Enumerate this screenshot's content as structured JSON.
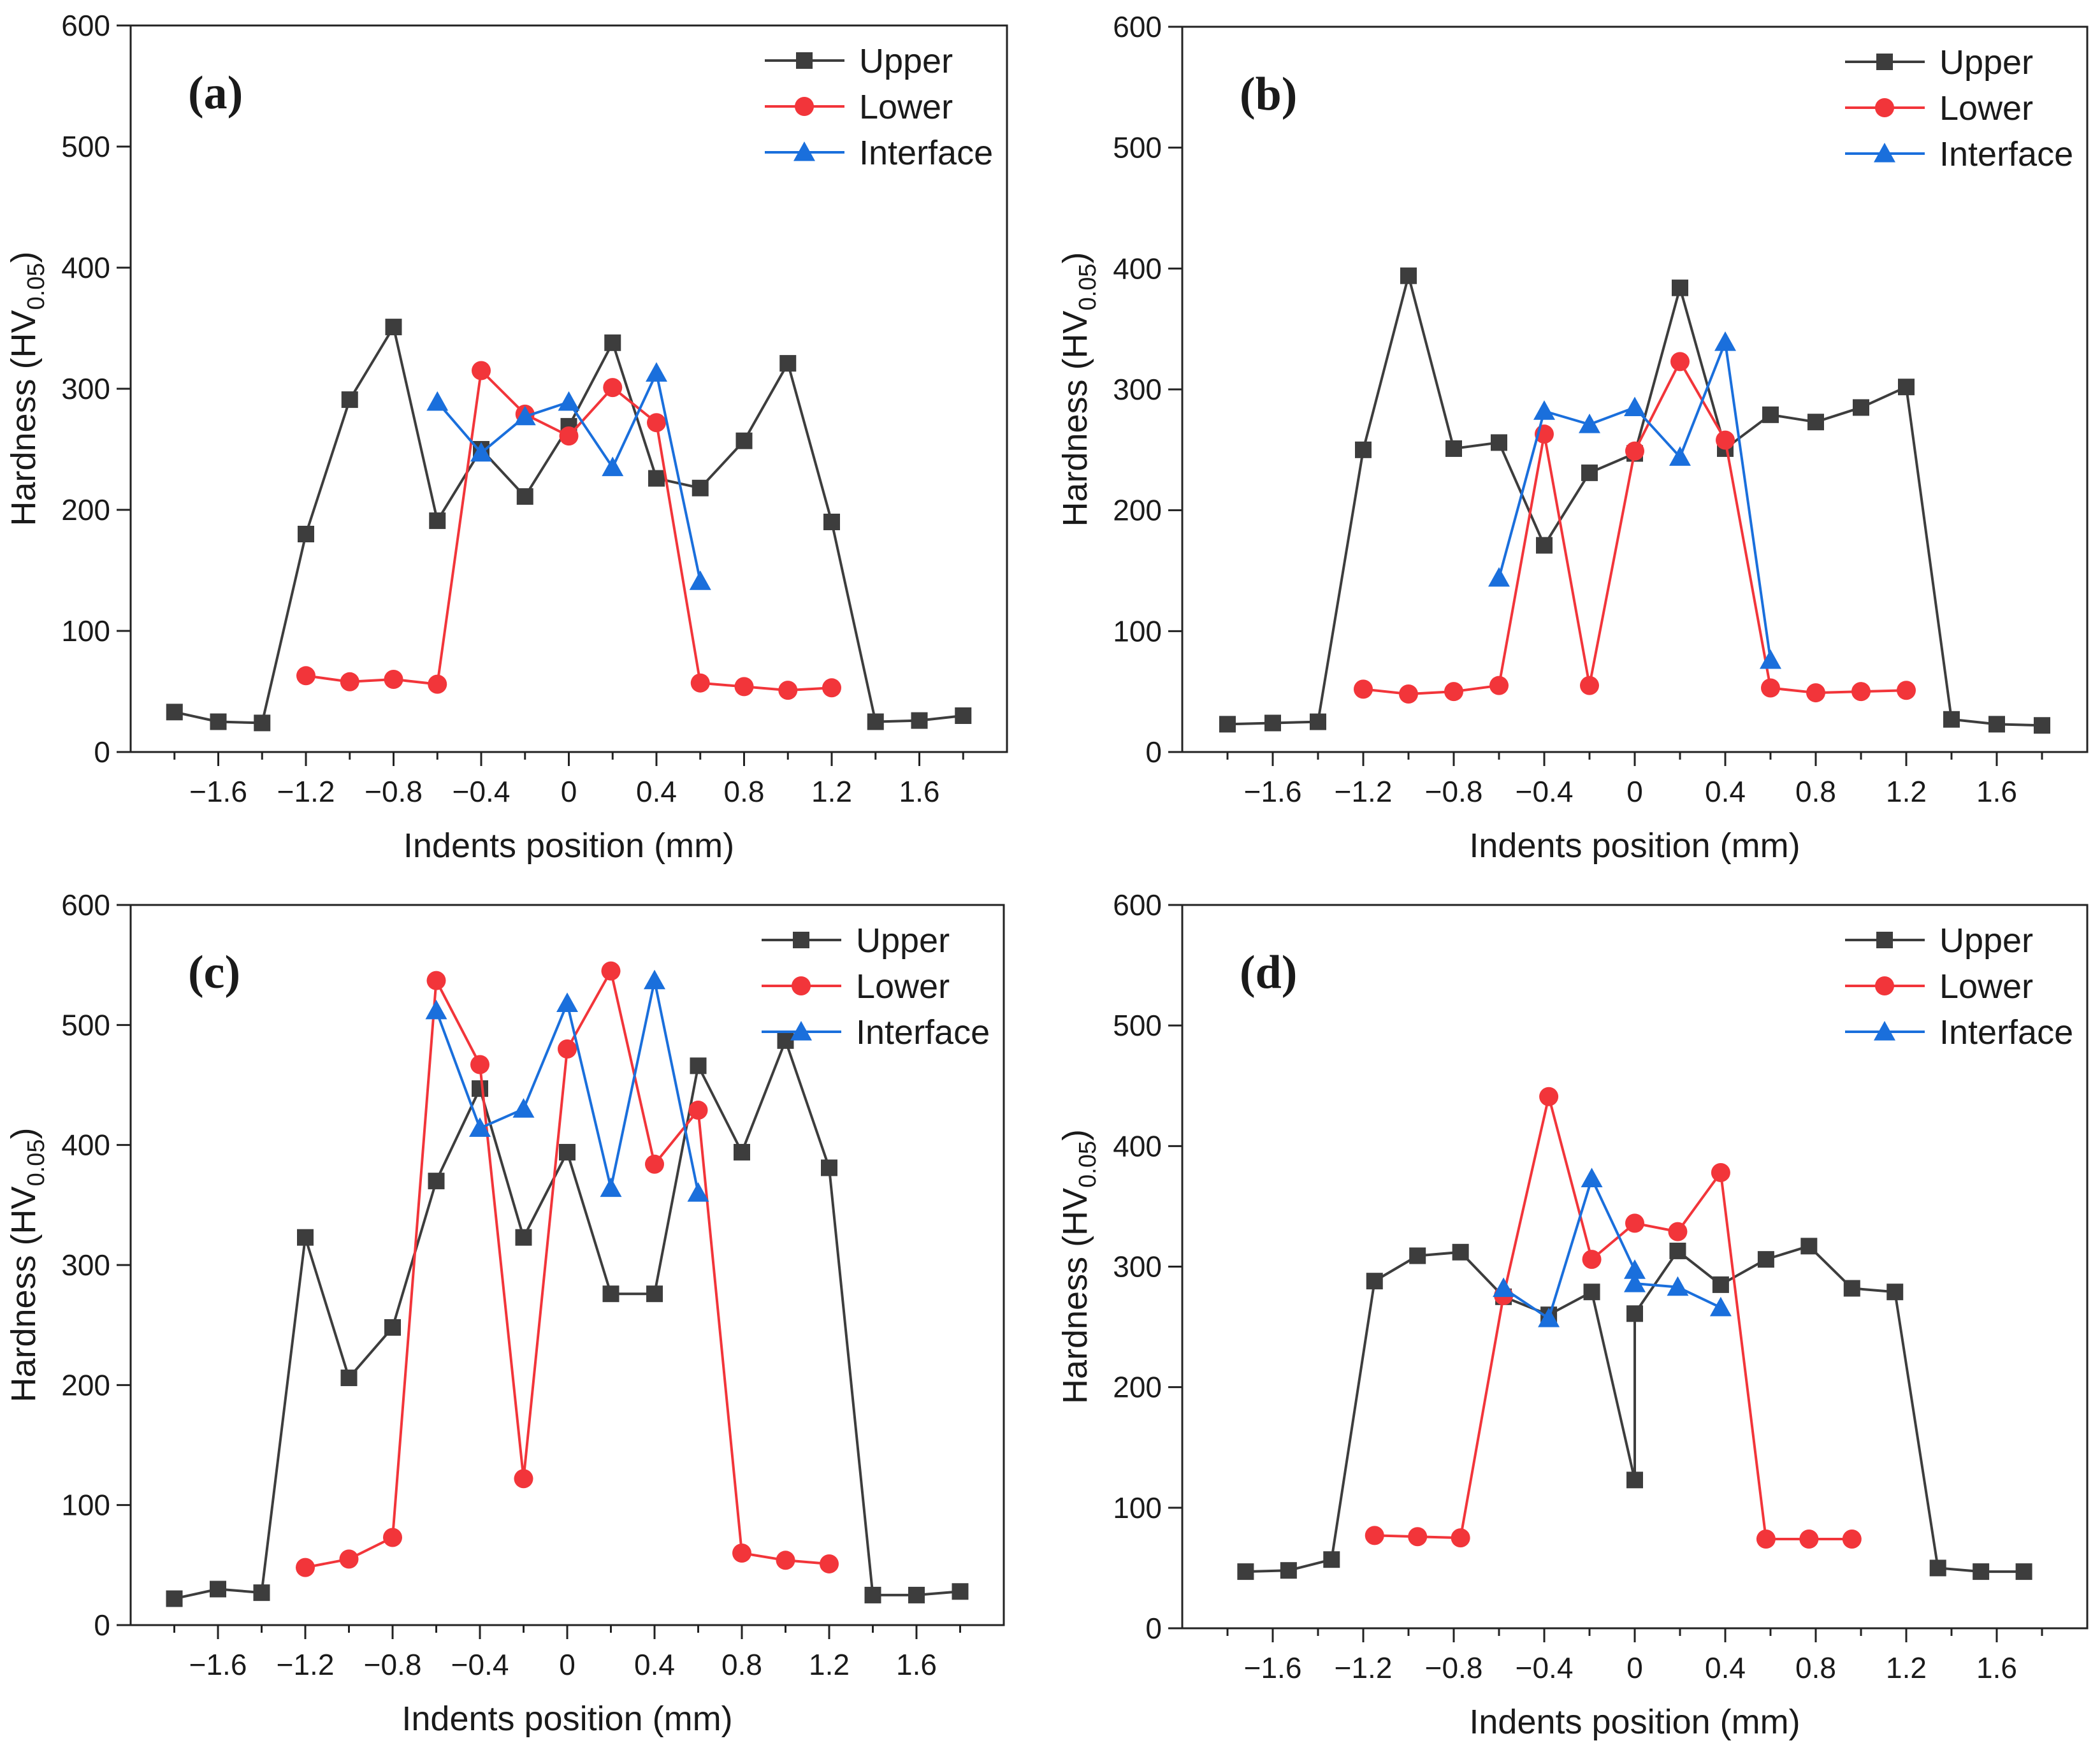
{
  "colors": {
    "Upper": "#3d3d3d",
    "Lower": "#f2353a",
    "Interface": "#1a6fdc"
  },
  "chart_data": [
    {
      "type": "line",
      "label": "(a)",
      "xlabel": "Indents position (mm)",
      "ylabel_main": "Hardness (HV",
      "ylabel_sub": "0.05",
      "ylabel_close": ")",
      "xlim": [
        -2.0,
        2.0
      ],
      "ylim": [
        0,
        600
      ],
      "xticks": [
        "-1.6",
        "-1.2",
        "-0.8",
        "-0.4",
        "0",
        "0.4",
        "0.8",
        "1.2",
        "1.6"
      ],
      "yticks": [
        "0",
        "100",
        "200",
        "300",
        "400",
        "500",
        "600"
      ],
      "legend_position": "top-right",
      "series": [
        {
          "name": "Upper",
          "marker": "square",
          "x": [
            -1.8,
            -1.6,
            -1.4,
            -1.2,
            -1.0,
            -0.8,
            -0.6,
            -0.4,
            -0.2,
            0,
            0.2,
            0.4,
            0.6,
            0.8,
            1.0,
            1.2,
            1.4,
            1.6,
            1.8
          ],
          "y": [
            33,
            25,
            24,
            180,
            291,
            351,
            191,
            250,
            211,
            269,
            338,
            226,
            218,
            257,
            321,
            190,
            25,
            26,
            30
          ]
        },
        {
          "name": "Lower",
          "marker": "circle",
          "x": [
            -1.2,
            -1.0,
            -0.8,
            -0.6,
            -0.4,
            -0.2,
            0,
            0.2,
            0.4,
            0.6,
            0.8,
            1.0,
            1.2
          ],
          "y": [
            63,
            58,
            60,
            56,
            315,
            279,
            261,
            301,
            272,
            57,
            54,
            51,
            53
          ]
        },
        {
          "name": "Interface",
          "marker": "triangle",
          "x": [
            -0.6,
            -0.4,
            -0.2,
            0,
            0.2,
            0.4,
            0.6
          ],
          "y": [
            289,
            247,
            277,
            289,
            235,
            313,
            141
          ]
        }
      ]
    },
    {
      "type": "line",
      "label": "(b)",
      "xlabel": "Indents position (mm)",
      "ylabel_main": "Hardness (HV",
      "ylabel_sub": "0.05",
      "ylabel_close": ")",
      "xlim": [
        -2.0,
        2.0
      ],
      "ylim": [
        0,
        600
      ],
      "xticks": [
        "-1.6",
        "-1.2",
        "-0.8",
        "-0.4",
        "0",
        "0.4",
        "0.8",
        "1.2",
        "1.6"
      ],
      "yticks": [
        "0",
        "100",
        "200",
        "300",
        "400",
        "500",
        "600"
      ],
      "legend_position": "top-right",
      "series": [
        {
          "name": "Upper",
          "marker": "square",
          "x": [
            -1.8,
            -1.6,
            -1.4,
            -1.2,
            -1.0,
            -0.8,
            -0.6,
            -0.4,
            -0.2,
            0,
            0.2,
            0.4,
            0.6,
            0.8,
            1.0,
            1.2,
            1.4,
            1.6,
            1.8
          ],
          "y": [
            23,
            24,
            25,
            250,
            394,
            251,
            256,
            171,
            231,
            247,
            384,
            251,
            279,
            273,
            285,
            302,
            27,
            23,
            22
          ]
        },
        {
          "name": "Lower",
          "marker": "circle",
          "x": [
            -1.2,
            -1.0,
            -0.8,
            -0.6,
            -0.4,
            -0.2,
            0,
            0.2,
            0.4,
            0.6,
            0.8,
            1.0,
            1.2
          ],
          "y": [
            52,
            48,
            50,
            55,
            263,
            55,
            249,
            323,
            258,
            53,
            49,
            50,
            51
          ]
        },
        {
          "name": "Interface",
          "marker": "triangle",
          "x": [
            -0.6,
            -0.4,
            -0.2,
            0,
            0.2,
            0.4,
            0.6
          ],
          "y": [
            144,
            282,
            271,
            285,
            244,
            339,
            76
          ]
        }
      ]
    },
    {
      "type": "line",
      "label": "(c)",
      "xlabel": "Indents position (mm)",
      "ylabel_main": "Hardness (HV",
      "ylabel_sub": "0.05",
      "ylabel_close": ")",
      "xlim": [
        -2.0,
        2.0
      ],
      "ylim": [
        0,
        600
      ],
      "xticks": [
        "-1.6",
        "-1.2",
        "-0.8",
        "-0.4",
        "0",
        "0.4",
        "0.8",
        "1.2",
        "1.6"
      ],
      "yticks": [
        "0",
        "100",
        "200",
        "300",
        "400",
        "500",
        "600"
      ],
      "legend_position": "top-right",
      "series": [
        {
          "name": "Upper",
          "marker": "square",
          "x": [
            -1.8,
            -1.6,
            -1.4,
            -1.2,
            -1.0,
            -0.8,
            -0.6,
            -0.4,
            -0.2,
            0,
            0.2,
            0.4,
            0.6,
            0.8,
            1.0,
            1.2,
            1.4,
            1.6,
            1.8
          ],
          "y": [
            22,
            30,
            27,
            323,
            206,
            248,
            370,
            447,
            323,
            394,
            276,
            276,
            466,
            394,
            487,
            381,
            25,
            25,
            28
          ]
        },
        {
          "name": "Lower",
          "marker": "circle",
          "x": [
            -1.2,
            -1.0,
            -0.8,
            -0.6,
            -0.4,
            -0.2,
            0,
            0.2,
            0.4,
            0.6,
            0.8,
            1.0,
            1.2
          ],
          "y": [
            48,
            55,
            73,
            537,
            467,
            122,
            480,
            545,
            384,
            429,
            60,
            54,
            51
          ]
        },
        {
          "name": "Interface",
          "marker": "triangle",
          "x": [
            -0.6,
            -0.4,
            -0.2,
            0,
            0.2,
            0.4,
            0.6
          ],
          "y": [
            512,
            414,
            430,
            518,
            364,
            537,
            360
          ]
        }
      ]
    },
    {
      "type": "line",
      "label": "(d)",
      "xlabel": "Indents position (mm)",
      "ylabel_main": "Hardness (HV",
      "ylabel_sub": "0.05",
      "ylabel_close": ")",
      "xlim": [
        -2.0,
        2.0
      ],
      "ylim": [
        0,
        600
      ],
      "xticks": [
        "-1.6",
        "-1.2",
        "-0.8",
        "-0.4",
        "0",
        "0.4",
        "0.8",
        "1.2",
        "1.6"
      ],
      "yticks": [
        "0",
        "100",
        "200",
        "300",
        "400",
        "500",
        "600"
      ],
      "legend_position": "top-right",
      "series": [
        {
          "name": "Upper",
          "marker": "square",
          "x": [
            -1.72,
            -1.53,
            -1.34,
            -1.15,
            -0.96,
            -0.77,
            -0.58,
            -0.38,
            -0.19,
            0,
            0,
            0.19,
            0.38,
            0.58,
            0.77,
            0.96,
            1.15,
            1.34,
            1.53,
            1.72
          ],
          "y": [
            47,
            48,
            57,
            288,
            309,
            312,
            275,
            260,
            279,
            123,
            261,
            313,
            285,
            306,
            317,
            282,
            279,
            50,
            47,
            47
          ]
        },
        {
          "name": "Lower",
          "marker": "circle",
          "x": [
            -1.15,
            -0.96,
            -0.77,
            -0.58,
            -0.38,
            -0.19,
            0,
            0.19,
            0.38,
            0.58,
            0.77,
            0.96
          ],
          "y": [
            77,
            76,
            75,
            276,
            441,
            306,
            336,
            329,
            378,
            74,
            74,
            74
          ]
        },
        {
          "name": "Interface",
          "marker": "triangle",
          "x": [
            -0.58,
            -0.38,
            -0.19,
            0,
            0,
            0.19,
            0.38
          ],
          "y": [
            282,
            257,
            373,
            297,
            286,
            283,
            266
          ]
        }
      ]
    }
  ]
}
